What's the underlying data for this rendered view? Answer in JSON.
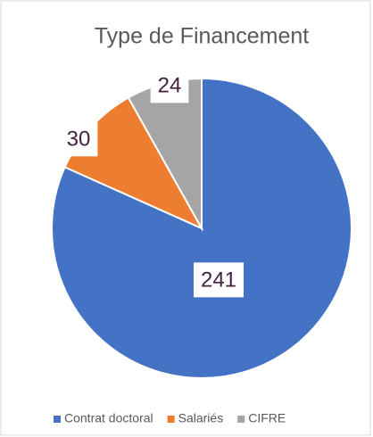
{
  "chart_data": {
    "type": "pie",
    "title": "Type de Financement",
    "categories": [
      "Contrat doctoral",
      "Salariés",
      "CIFRE"
    ],
    "values": [
      241,
      30,
      24
    ],
    "colors": [
      "#4472c4",
      "#ed7d31",
      "#a5a5a5"
    ],
    "legend": "bottom"
  }
}
